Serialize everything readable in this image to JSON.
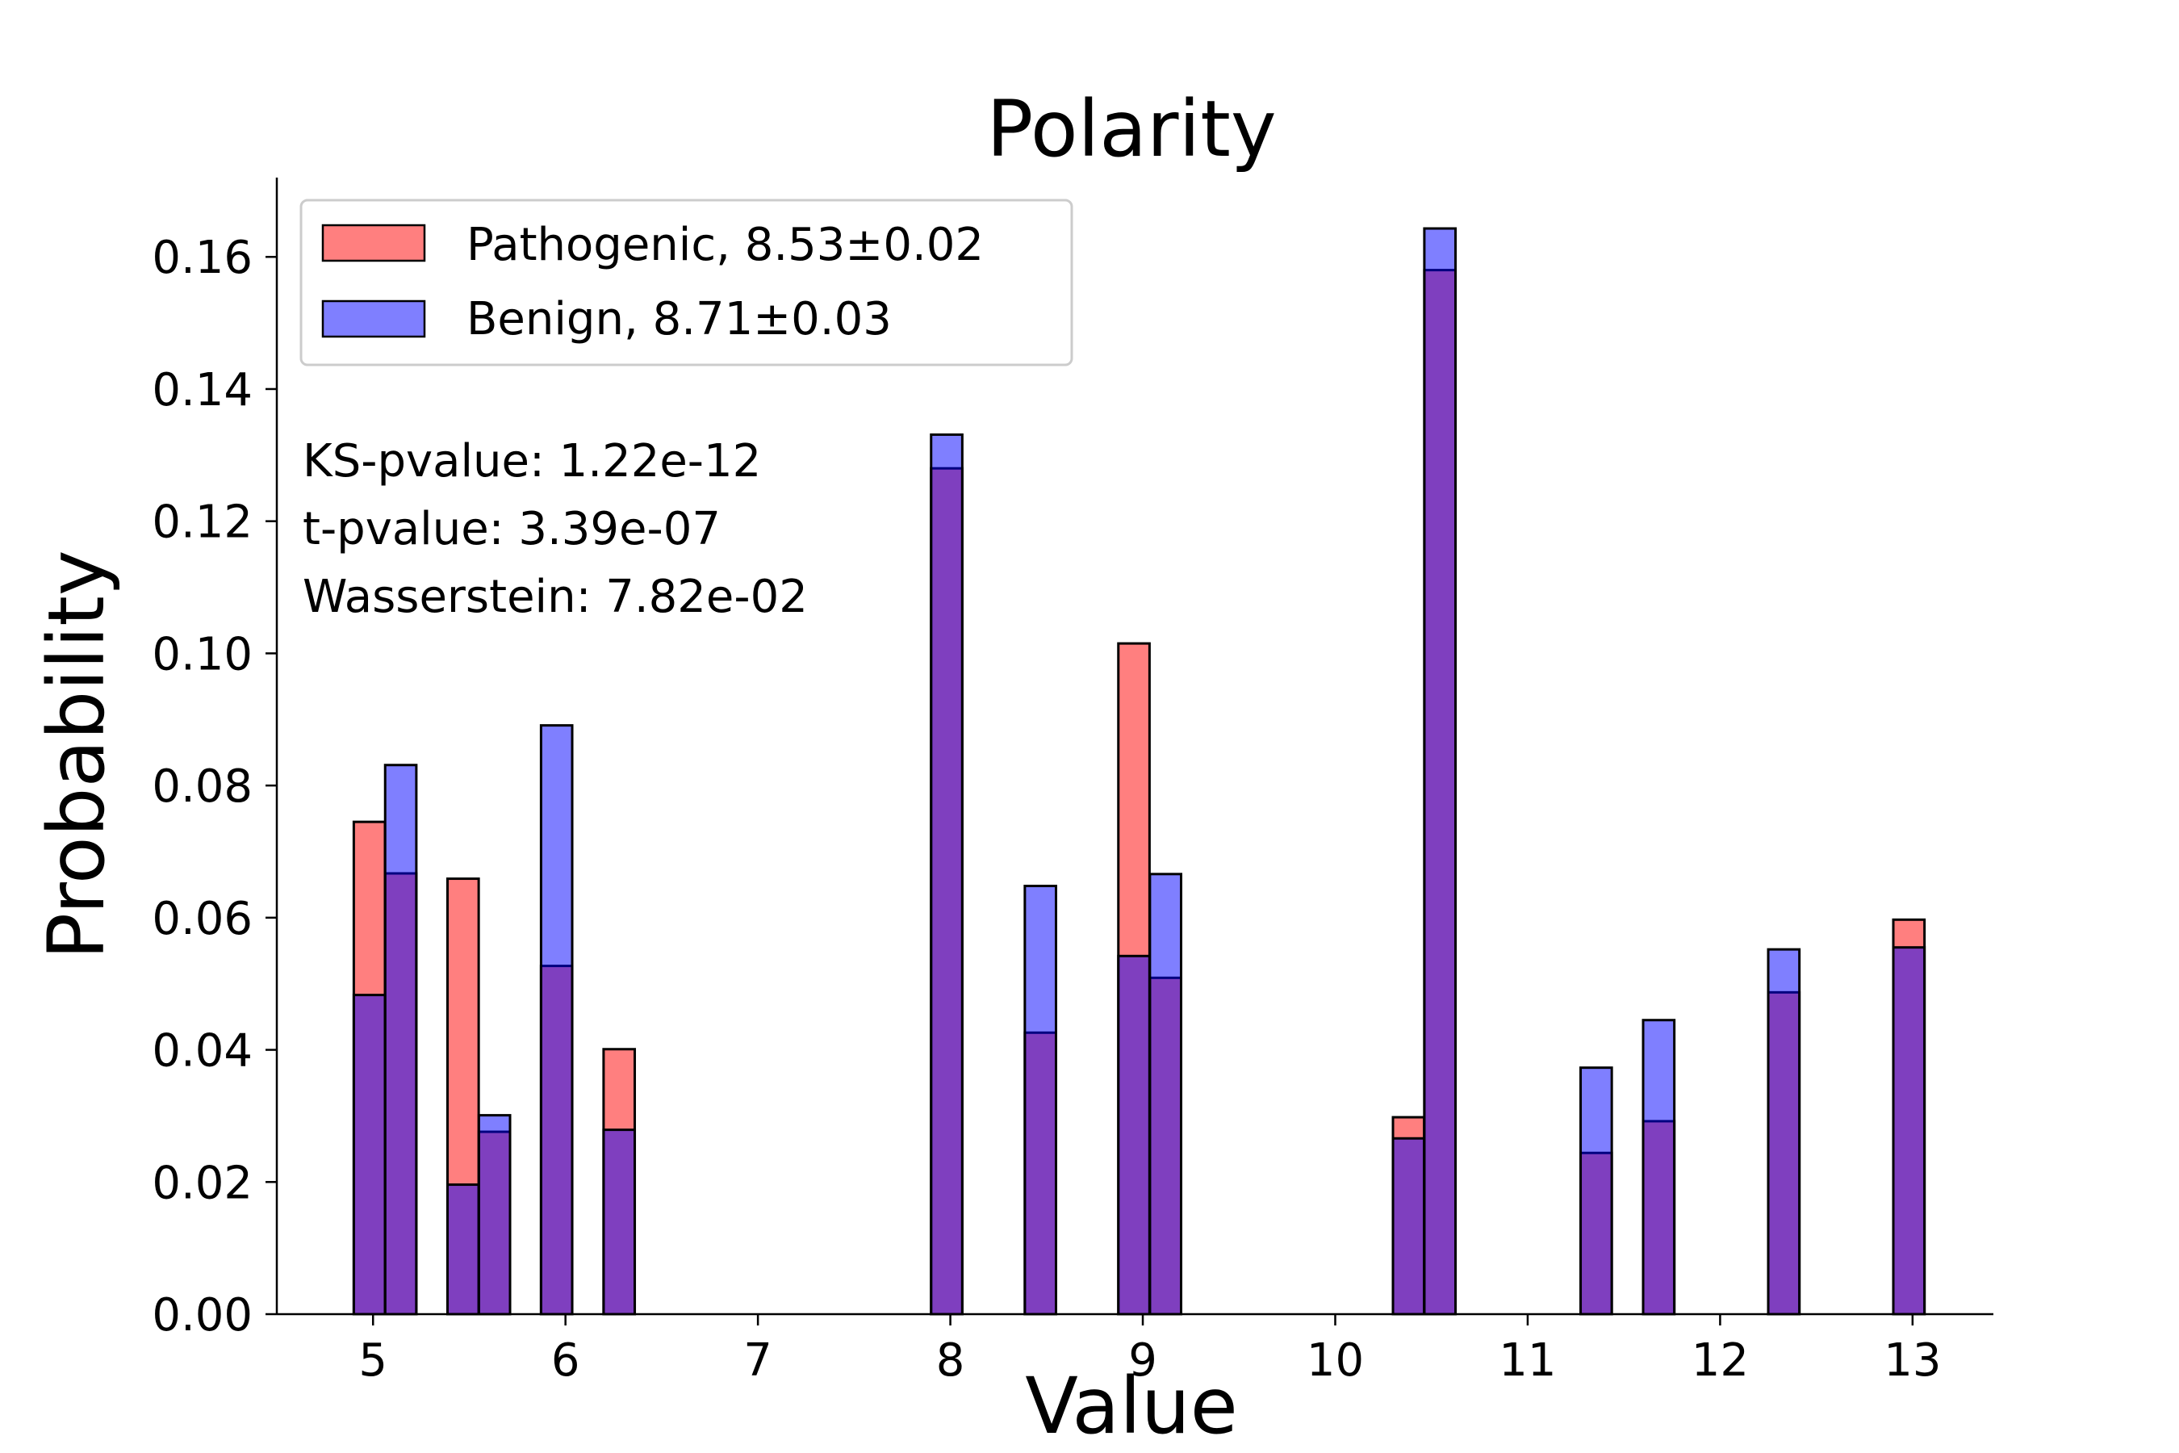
{
  "chart_data": {
    "type": "bar",
    "title": "Polarity",
    "xlabel": "Value",
    "ylabel": "Probability",
    "xlim": [
      4.5,
      13.42
    ],
    "ylim": [
      0,
      0.172
    ],
    "xticks": [
      5,
      6,
      7,
      8,
      9,
      10,
      11,
      12,
      13
    ],
    "xtick_labels": [
      "5",
      "6",
      "7",
      "8",
      "9",
      "10",
      "11",
      "12",
      "13"
    ],
    "yticks": [
      0,
      0.02,
      0.04,
      0.06,
      0.08,
      0.1,
      0.12,
      0.14,
      0.16
    ],
    "ytick_labels": [
      "0.00",
      "0.02",
      "0.04",
      "0.06",
      "0.08",
      "0.10",
      "0.12",
      "0.14",
      "0.16"
    ],
    "grid": false,
    "legend_position": "top-left",
    "bin_width": 0.162,
    "bins": [
      4.9,
      5.063,
      5.387,
      5.55,
      5.873,
      6.198,
      7.9,
      8.387,
      8.873,
      9.037,
      10.3,
      10.463,
      11.275,
      11.6,
      12.25,
      12.9
    ],
    "series": [
      {
        "name": "Pathogenic, 8.53±0.02",
        "color": "#ff0000",
        "values": [
          0.0745,
          0.0667,
          0.0659,
          0.0276,
          0.0527,
          0.0401,
          0.128,
          0.0426,
          0.1015,
          0.0509,
          0.0298,
          0.158,
          0.0244,
          0.0292,
          0.0487,
          0.0597
        ]
      },
      {
        "name": "Benign, 8.71±0.03",
        "color": "#0000ff",
        "values": [
          0.0483,
          0.0831,
          0.0196,
          0.0301,
          0.0891,
          0.0279,
          0.1331,
          0.0648,
          0.0542,
          0.0666,
          0.0266,
          0.1643,
          0.0373,
          0.0445,
          0.0552,
          0.0555
        ]
      }
    ],
    "annotations": [
      "KS-pvalue: 1.22e-12",
      "t-pvalue: 3.39e-07",
      "Wasserstein: 7.82e-02"
    ]
  }
}
